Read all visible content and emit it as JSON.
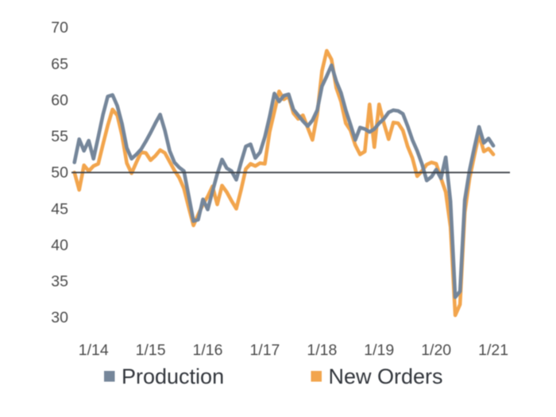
{
  "chart_data": {
    "type": "line",
    "x_months": [
      "2013-09",
      "2013-10",
      "2013-11",
      "2013-12",
      "2014-01",
      "2014-02",
      "2014-03",
      "2014-04",
      "2014-05",
      "2014-06",
      "2014-07",
      "2014-08",
      "2014-09",
      "2014-10",
      "2014-11",
      "2014-12",
      "2015-01",
      "2015-02",
      "2015-03",
      "2015-04",
      "2015-05",
      "2015-06",
      "2015-07",
      "2015-08",
      "2015-09",
      "2015-10",
      "2015-11",
      "2015-12",
      "2016-01",
      "2016-02",
      "2016-03",
      "2016-04",
      "2016-05",
      "2016-06",
      "2016-07",
      "2016-08",
      "2016-09",
      "2016-10",
      "2016-11",
      "2016-12",
      "2017-01",
      "2017-02",
      "2017-03",
      "2017-04",
      "2017-05",
      "2017-06",
      "2017-07",
      "2017-08",
      "2017-09",
      "2017-10",
      "2017-11",
      "2017-12",
      "2018-01",
      "2018-02",
      "2018-03",
      "2018-04",
      "2018-05",
      "2018-06",
      "2018-07",
      "2018-08",
      "2018-09",
      "2018-10",
      "2018-11",
      "2018-12",
      "2019-01",
      "2019-02",
      "2019-03",
      "2019-04",
      "2019-05",
      "2019-06",
      "2019-07",
      "2019-08",
      "2019-09",
      "2019-10",
      "2019-11",
      "2019-12",
      "2020-01",
      "2020-02",
      "2020-03",
      "2020-04",
      "2020-05",
      "2020-06",
      "2020-07",
      "2020-08",
      "2020-09",
      "2020-10",
      "2020-11",
      "2020-12",
      "2021-01"
    ],
    "series": [
      {
        "name": "Production",
        "color": "#75869A",
        "values": [
          51.4,
          54.6,
          53.0,
          54.4,
          51.9,
          54.9,
          58.0,
          60.5,
          60.7,
          59.2,
          56.7,
          53.4,
          51.9,
          52.5,
          53.2,
          54.3,
          55.5,
          56.8,
          58.0,
          55.8,
          53.0,
          51.4,
          50.7,
          50.2,
          46.8,
          43.3,
          43.5,
          46.3,
          44.9,
          47.4,
          49.8,
          51.8,
          50.6,
          50.2,
          49.0,
          51.4,
          53.6,
          53.9,
          52.0,
          52.8,
          54.9,
          57.7,
          60.9,
          59.8,
          60.6,
          60.8,
          58.7,
          57.9,
          57.1,
          56.4,
          57.2,
          58.6,
          61.9,
          63.3,
          64.8,
          62.6,
          61.0,
          58.6,
          56.6,
          54.5,
          56.2,
          56.0,
          55.6,
          56.0,
          56.8,
          57.4,
          58.3,
          58.6,
          58.5,
          58.1,
          56.4,
          54.5,
          53.0,
          51.2,
          48.9,
          49.4,
          50.4,
          49.2,
          52.1,
          46.0,
          32.8,
          33.6,
          46.2,
          50.3,
          53.4,
          56.3,
          54.1,
          54.7,
          53.7
        ]
      },
      {
        "name": "New Orders",
        "color": "#F2A54D",
        "values": [
          50.0,
          47.6,
          51.0,
          50.2,
          50.9,
          51.2,
          53.9,
          56.5,
          58.7,
          57.9,
          55.1,
          51.3,
          49.9,
          51.4,
          52.8,
          52.7,
          51.7,
          52.3,
          53.1,
          52.7,
          51.5,
          50.3,
          49.3,
          47.8,
          45.2,
          42.7,
          44.2,
          45.6,
          46.7,
          48.1,
          45.6,
          48.2,
          47.3,
          46.1,
          45.0,
          47.6,
          50.5,
          51.2,
          50.9,
          51.3,
          51.2,
          55.6,
          58.4,
          61.2,
          60.1,
          60.5,
          58.2,
          57.4,
          57.9,
          56.2,
          54.5,
          58.0,
          64.0,
          66.8,
          65.6,
          61.7,
          59.8,
          56.8,
          55.8,
          53.8,
          52.5,
          52.9,
          59.4,
          53.5,
          59.4,
          56.8,
          54.6,
          56.9,
          56.8,
          55.8,
          53.6,
          52.0,
          49.5,
          50.2,
          51.1,
          51.4,
          51.2,
          49.2,
          47.3,
          42.5,
          30.3,
          31.8,
          44.5,
          49.2,
          52.3,
          55.3,
          52.9,
          53.3,
          52.5
        ]
      }
    ],
    "y_ticks": [
      70,
      65,
      60,
      55,
      50,
      45,
      40,
      35,
      30
    ],
    "x_tick_labels": [
      "1/14",
      "1/15",
      "1/16",
      "1/17",
      "1/18",
      "1/19",
      "1/20",
      "1/21"
    ],
    "reference_line": {
      "value": 50,
      "color": "#3D4248"
    },
    "ylim": [
      28,
      71
    ],
    "grid": false,
    "legend_position": "bottom",
    "title": "",
    "xlabel": "",
    "ylabel": ""
  },
  "legend": {
    "items": [
      {
        "label": "Production",
        "color": "#75869A"
      },
      {
        "label": "New Orders",
        "color": "#F2A54D"
      }
    ]
  },
  "layout_colors": {
    "background": "#FFFFFF",
    "axis_text": "#4C4C4C",
    "legend_text": "#32363C"
  }
}
